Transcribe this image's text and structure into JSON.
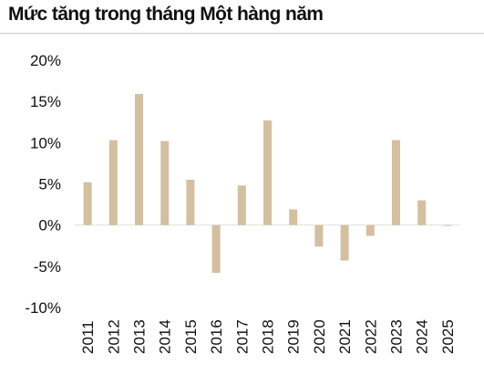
{
  "chart_data": {
    "type": "bar",
    "title": "Mức tăng trong tháng Một hàng năm",
    "xlabel": "",
    "ylabel": "",
    "categories": [
      "2011",
      "2012",
      "2013",
      "2014",
      "2015",
      "2016",
      "2017",
      "2018",
      "2019",
      "2020",
      "2021",
      "2022",
      "2023",
      "2024",
      "2025"
    ],
    "values": [
      5.2,
      10.3,
      15.9,
      10.2,
      5.5,
      -5.8,
      4.8,
      12.7,
      1.9,
      -2.6,
      -4.3,
      -1.3,
      10.3,
      3.0,
      -0.1
    ],
    "ylim": [
      -10,
      20
    ],
    "yticks": [
      -10,
      -5,
      0,
      5,
      10,
      15,
      20
    ],
    "ytick_labels": [
      "-10%",
      "-5%",
      "0%",
      "5%",
      "10%",
      "15%",
      "20%"
    ],
    "bar_color": "#d4bf9f",
    "axis_color": "#e0e0e0",
    "grid": false,
    "legend": "none"
  }
}
